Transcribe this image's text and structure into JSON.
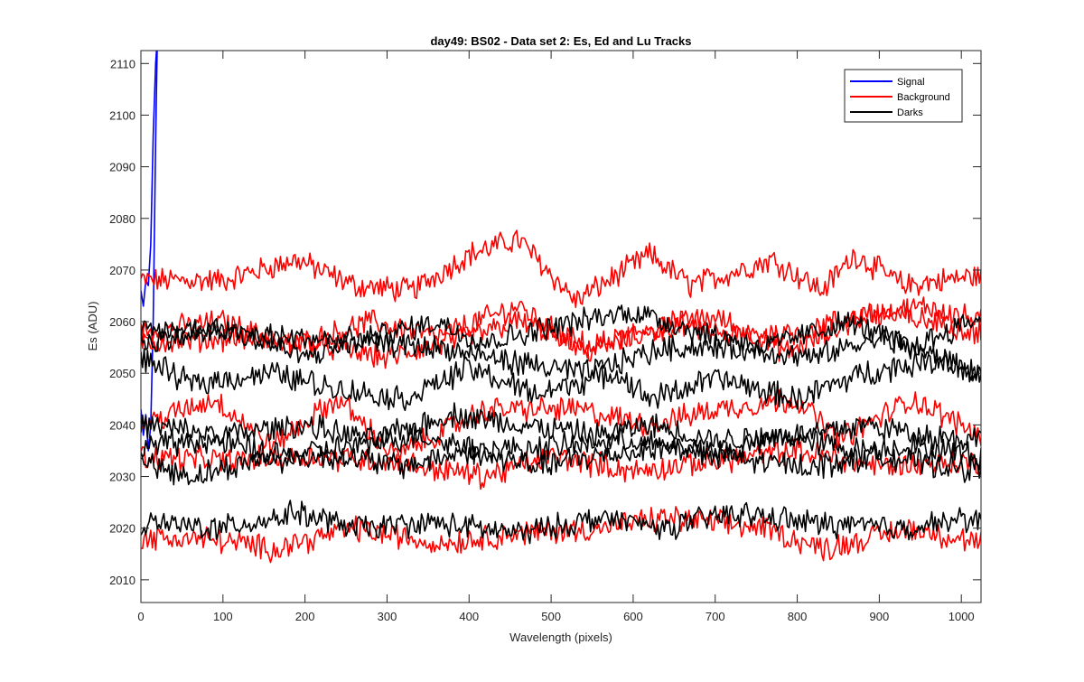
{
  "chart_data": {
    "type": "line",
    "title": "day49: BS02 - Data set 2: Es, Ed and Lu Tracks",
    "xlabel": "Wavelength (pixels)",
    "ylabel": "Es (ADU)",
    "xlim": [
      0,
      1024
    ],
    "ylim": [
      2005.6,
      2112.5
    ],
    "xticks": [
      0,
      100,
      200,
      300,
      400,
      500,
      600,
      700,
      800,
      900,
      1000
    ],
    "yticks": [
      2010,
      2020,
      2030,
      2040,
      2050,
      2060,
      2070,
      2080,
      2090,
      2100,
      2110
    ],
    "grid": false,
    "legend": {
      "placement": "top-right",
      "entries": [
        "Signal",
        "Background",
        "Darks"
      ]
    },
    "colors": {
      "Signal": "#0000ff",
      "Background": "#ff0000",
      "Darks": "#000000"
    },
    "series": [
      {
        "name": "Signal",
        "x": [
          0,
          3,
          6,
          9,
          12,
          15,
          18,
          20,
          22
        ],
        "values": [
          2066,
          2063,
          2068,
          2067,
          2075,
          2096,
          2110,
          2115,
          2120
        ]
      },
      {
        "name": "Signal",
        "x": [
          0,
          3,
          6,
          9,
          12,
          15,
          18,
          20,
          22
        ],
        "values": [
          2043,
          2038,
          2042,
          2035,
          2040,
          2060,
          2095,
          2115,
          2120
        ]
      },
      {
        "name": "Background",
        "x": [
          0,
          100,
          190,
          260,
          330,
          400,
          460,
          530,
          620,
          670,
          770,
          830,
          870,
          930,
          1024
        ],
        "values": [
          2068,
          2068,
          2072,
          2067,
          2066,
          2073,
          2076,
          2064,
          2073,
          2067,
          2072,
          2066,
          2073,
          2067,
          2069
        ]
      },
      {
        "name": "Background",
        "x": [
          0,
          100,
          180,
          280,
          360,
          460,
          540,
          620,
          700,
          790,
          880,
          960,
          1024
        ],
        "values": [
          2058,
          2060,
          2055,
          2060,
          2057,
          2063,
          2054,
          2058,
          2061,
          2054,
          2061,
          2063,
          2060
        ]
      },
      {
        "name": "Background",
        "x": [
          0,
          120,
          200,
          300,
          400,
          460,
          550,
          650,
          720,
          800,
          900,
          1024
        ],
        "values": [
          2056,
          2057,
          2056,
          2053,
          2057,
          2060,
          2055,
          2060,
          2057,
          2058,
          2062,
          2058
        ]
      },
      {
        "name": "Background",
        "x": [
          0,
          90,
          160,
          240,
          310,
          420,
          530,
          620,
          700,
          800,
          850,
          940,
          1024
        ],
        "values": [
          2040,
          2045,
          2036,
          2045,
          2034,
          2043,
          2043,
          2040,
          2043,
          2045,
          2037,
          2045,
          2038
        ]
      },
      {
        "name": "Background",
        "x": [
          0,
          100,
          200,
          300,
          420,
          500,
          600,
          700,
          800,
          900,
          1024
        ],
        "values": [
          2034,
          2033,
          2034,
          2033,
          2030,
          2034,
          2031,
          2033,
          2035,
          2032,
          2033
        ]
      },
      {
        "name": "Background",
        "x": [
          0,
          80,
          160,
          260,
          360,
          460,
          560,
          640,
          760,
          830,
          940,
          1024
        ],
        "values": [
          2018,
          2018,
          2016,
          2020,
          2017,
          2019,
          2020,
          2022,
          2020,
          2016,
          2020,
          2017
        ]
      },
      {
        "name": "Darks",
        "x": [
          0,
          100,
          200,
          260,
          360,
          420,
          500,
          600,
          680,
          760,
          860,
          940,
          1024
        ],
        "values": [
          2058,
          2059,
          2053,
          2056,
          2060,
          2056,
          2059,
          2062,
          2058,
          2055,
          2060,
          2055,
          2061
        ]
      },
      {
        "name": "Darks",
        "x": [
          0,
          100,
          180,
          280,
          360,
          460,
          540,
          640,
          720,
          820,
          900,
          1024
        ],
        "values": [
          2056,
          2058,
          2057,
          2056,
          2055,
          2052,
          2050,
          2055,
          2055,
          2053,
          2057,
          2050
        ]
      },
      {
        "name": "Darks",
        "x": [
          0,
          60,
          160,
          240,
          320,
          400,
          480,
          580,
          620,
          700,
          800,
          880,
          980,
          1024
        ],
        "values": [
          2053,
          2048,
          2050,
          2047,
          2045,
          2051,
          2046,
          2050,
          2045,
          2049,
          2045,
          2050,
          2053,
          2049
        ]
      },
      {
        "name": "Darks",
        "x": [
          0,
          100,
          200,
          280,
          380,
          460,
          560,
          620,
          700,
          800,
          880,
          960,
          1024
        ],
        "values": [
          2040,
          2038,
          2040,
          2037,
          2042,
          2040,
          2038,
          2040,
          2037,
          2038,
          2040,
          2038,
          2037
        ]
      },
      {
        "name": "Darks",
        "x": [
          0,
          80,
          180,
          260,
          340,
          420,
          520,
          600,
          700,
          780,
          880,
          940,
          1024
        ],
        "values": [
          2036,
          2037,
          2034,
          2036,
          2038,
          2035,
          2036,
          2037,
          2034,
          2038,
          2035,
          2036,
          2034
        ]
      },
      {
        "name": "Darks",
        "x": [
          0,
          60,
          140,
          240,
          320,
          400,
          480,
          560,
          660,
          740,
          820,
          900,
          1024
        ],
        "values": [
          2033,
          2030,
          2033,
          2034,
          2032,
          2035,
          2032,
          2034,
          2036,
          2033,
          2032,
          2034,
          2031
        ]
      },
      {
        "name": "Darks",
        "x": [
          0,
          100,
          190,
          260,
          360,
          460,
          560,
          640,
          720,
          820,
          920,
          1024
        ],
        "values": [
          2021,
          2020,
          2023,
          2020,
          2021,
          2019,
          2022,
          2020,
          2023,
          2021,
          2020,
          2022
        ]
      }
    ]
  }
}
